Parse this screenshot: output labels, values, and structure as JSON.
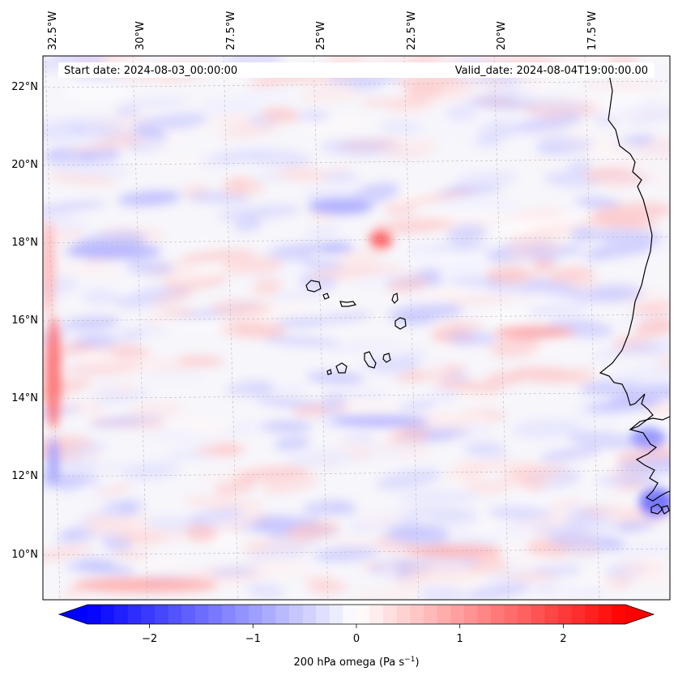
{
  "map": {
    "start_date": "Start date: 2024-08-03_00:00:00",
    "valid_date": "Valid_date: 2024-08-04T19:00:00.00",
    "lon_labels": [
      "32.5°W",
      "30°W",
      "27.5°W",
      "25°W",
      "22.5°W",
      "20°W",
      "17.5°W"
    ],
    "lat_labels": [
      "22°N",
      "20°N",
      "18°N",
      "16°N",
      "14°N",
      "12°N",
      "10°N"
    ],
    "field": "200 hPa omega",
    "colormap": "bwr",
    "gridlines": true
  },
  "colorbar": {
    "label_main": "200 hPa omega (Pa s",
    "label_sup": "−1",
    "label_close": ")",
    "ticks": [
      "−2",
      "−1",
      "0",
      "1",
      "2"
    ],
    "tick_values": [
      -2,
      -1,
      0,
      1,
      2
    ],
    "range": [
      -2.6,
      2.6
    ],
    "extend": "both",
    "min_color": "#0000ff",
    "mid_color": "#ffffff",
    "max_color": "#ff0000"
  }
}
